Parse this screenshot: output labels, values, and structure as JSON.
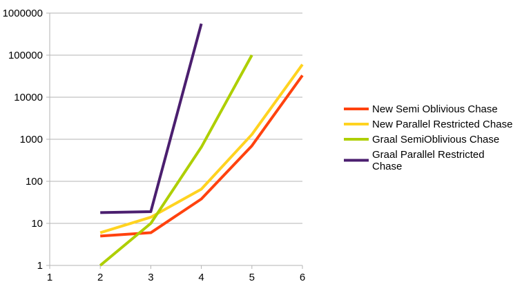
{
  "chart_data": {
    "type": "line",
    "title": "",
    "xlabel": "",
    "ylabel": "",
    "y_scale": "log",
    "xlim": [
      1,
      6
    ],
    "ylim": [
      1,
      1000000
    ],
    "x_ticks": [
      "1",
      "2",
      "3",
      "4",
      "5",
      "6"
    ],
    "y_ticks": [
      "1",
      "10",
      "100",
      "1000",
      "10000",
      "100000",
      "1000000"
    ],
    "grid": "horizontal",
    "legend_position": "right",
    "series": [
      {
        "name": "New Semi Oblivious Chase",
        "color": "#ff420e",
        "x": [
          2,
          3,
          4,
          5,
          6
        ],
        "y": [
          5,
          6,
          38,
          700,
          33000
        ]
      },
      {
        "name": "New Parallel Restricted Chase",
        "color": "#ffd320",
        "x": [
          2,
          3,
          4,
          5,
          6
        ],
        "y": [
          6,
          14,
          65,
          1300,
          60000
        ]
      },
      {
        "name": "Graal SemiOblivious Chase",
        "color": "#aecf00",
        "x": [
          2,
          3,
          4,
          5
        ],
        "y": [
          1,
          10,
          650,
          100000
        ]
      },
      {
        "name": "Graal Parallel Restricted Chase",
        "color": "#4b1f6f",
        "x": [
          2,
          3,
          4
        ],
        "y": [
          18,
          19,
          560000
        ]
      }
    ]
  }
}
